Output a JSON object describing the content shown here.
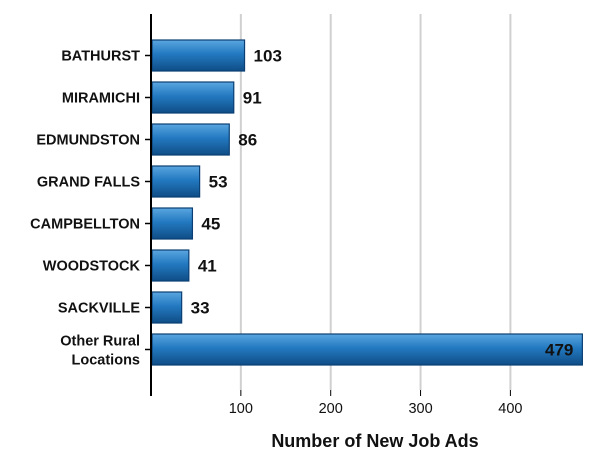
{
  "chart_data": {
    "type": "bar",
    "orientation": "horizontal",
    "categories": [
      "BATHURST",
      "MIRAMICHI",
      "EDMUNDSTON",
      "GRAND FALLS",
      "CAMPBELLTON",
      "WOODSTOCK",
      "SACKVILLE",
      "Other Rural Locations"
    ],
    "category_lines": [
      [
        "BATHURST"
      ],
      [
        "MIRAMICHI"
      ],
      [
        "EDMUNDSTON"
      ],
      [
        "GRAND FALLS"
      ],
      [
        "CAMPBELLTON"
      ],
      [
        "WOODSTOCK"
      ],
      [
        "SACKVILLE"
      ],
      [
        "Other Rural",
        "Locations"
      ]
    ],
    "values": [
      103,
      91,
      86,
      53,
      45,
      41,
      33,
      479
    ],
    "value_labels": [
      "103",
      "91",
      "86",
      "53",
      "45",
      "41",
      "33",
      "479"
    ],
    "xlabel": "Number of New Job Ads",
    "ylabel": "",
    "title": "",
    "xlim": [
      0,
      500
    ],
    "xticks": [
      100,
      200,
      300,
      400
    ],
    "grid": "vertical",
    "colors": {
      "bar_top": "#4d9ad6",
      "bar_mid": "#1f6fb3",
      "bar_bottom": "#0f4d86",
      "bar_edge": "#0b3f73",
      "grid": "#d0d0d0",
      "axis": "#000000"
    }
  }
}
